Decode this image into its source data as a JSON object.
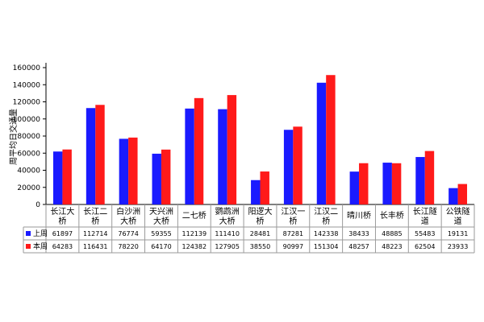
{
  "chart_data": {
    "type": "bar",
    "ylabel": "周平均日交通量",
    "ylim": [
      0,
      160000
    ],
    "yticks": [
      0,
      20000,
      40000,
      60000,
      80000,
      100000,
      120000,
      140000,
      160000
    ],
    "categories": [
      [
        "长江大",
        "桥"
      ],
      [
        "长江二",
        "桥"
      ],
      [
        "白沙洲",
        "大桥"
      ],
      [
        "天兴洲",
        "大桥"
      ],
      [
        "二七桥"
      ],
      [
        "鹦鹉洲",
        "大桥"
      ],
      [
        "阳逻大",
        "桥"
      ],
      [
        "江汉一",
        "桥"
      ],
      [
        "江汉二",
        "桥"
      ],
      [
        "晴川桥"
      ],
      [
        "长丰桥"
      ],
      [
        "长江隧",
        "道"
      ],
      [
        "公铁隧",
        "道"
      ]
    ],
    "series": [
      {
        "name": "上周",
        "color": "#1a1aff",
        "values": [
          61897,
          112714,
          76774,
          59355,
          112139,
          111410,
          28481,
          87281,
          142338,
          38433,
          48885,
          55483,
          19131
        ]
      },
      {
        "name": "本周",
        "color": "#ff1a1a",
        "values": [
          64283,
          116431,
          78220,
          64170,
          124382,
          127905,
          38550,
          90997,
          151304,
          48257,
          48223,
          62504,
          23933
        ]
      }
    ],
    "grid": false,
    "legend": "left-of-table"
  }
}
